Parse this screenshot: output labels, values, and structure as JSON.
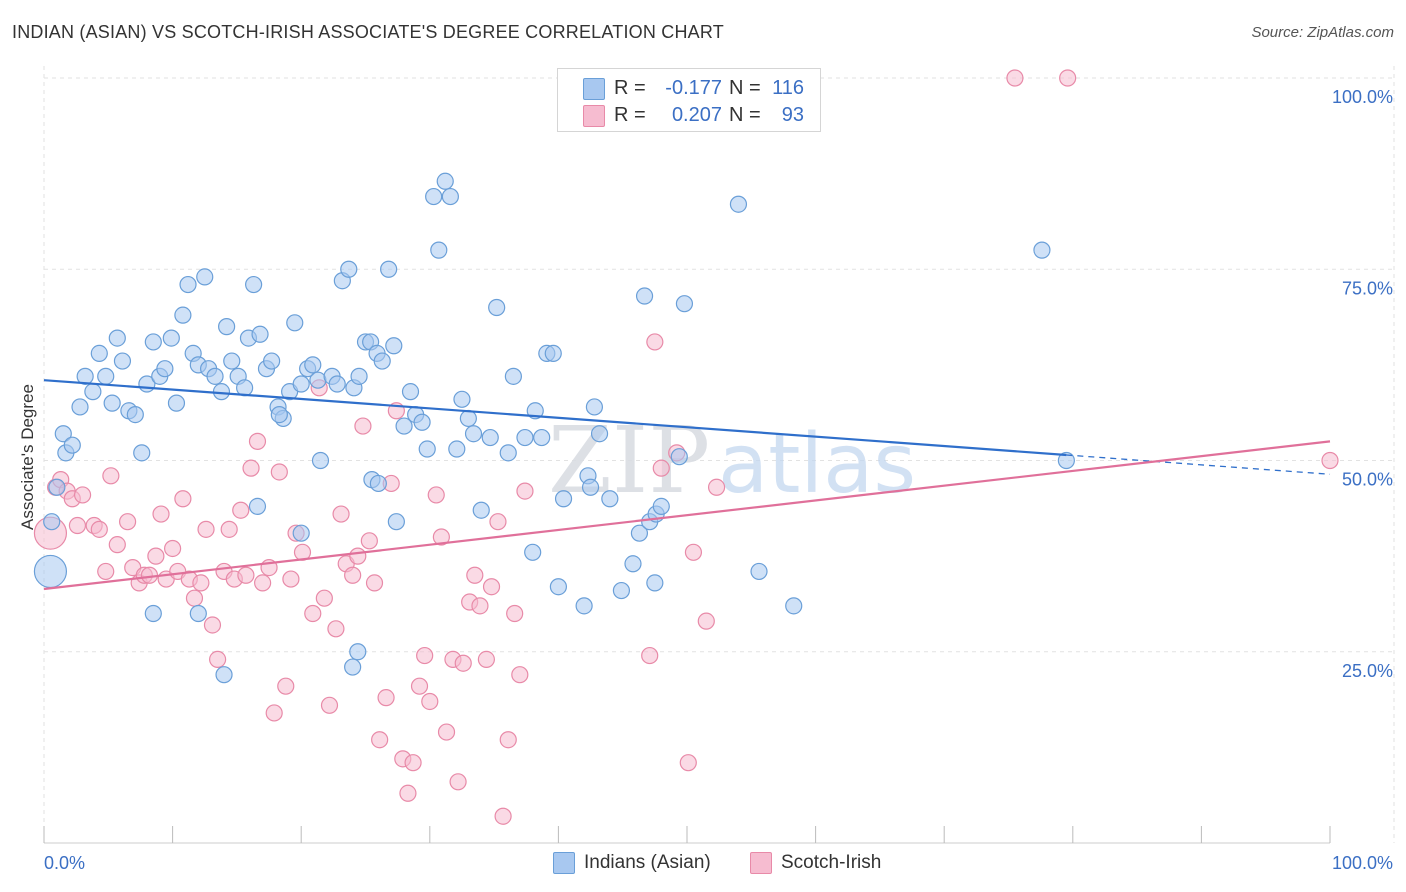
{
  "title": "INDIAN (ASIAN) VS SCOTCH-IRISH ASSOCIATE'S DEGREE CORRELATION CHART",
  "source": "Source: ZipAtlas.com",
  "watermark": {
    "zip": "ZIP",
    "atlas": "atlas"
  },
  "colors": {
    "blue_fill": "#a8c8f0",
    "blue_stroke": "#6a9fd8",
    "blue_line": "#2f6fcb",
    "pink_fill": "#f6bcd0",
    "pink_stroke": "#e88aa8",
    "pink_line": "#e0709a",
    "tick_text": "#3b6fc4",
    "grid": "#e2e2e2"
  },
  "stats": [
    {
      "r_label": "R =",
      "r_value": "-0.177",
      "n_label": "N =",
      "n_value": "116"
    },
    {
      "r_label": "R =",
      "r_value": "0.207",
      "n_label": "N =",
      "n_value": "93"
    }
  ],
  "legend": {
    "series1": "Indians (Asian)",
    "series2": "Scotch-Irish"
  },
  "chart_data": {
    "type": "scatter",
    "title": "INDIAN (ASIAN) VS SCOTCH-IRISH ASSOCIATE'S DEGREE CORRELATION CHART",
    "xlabel": "",
    "ylabel": "Associate's Degree",
    "xlim": [
      0,
      100
    ],
    "ylim": [
      0,
      100
    ],
    "x_tick_labels": [
      "0.0%",
      "100.0%"
    ],
    "y_tick_labels": [
      "25.0%",
      "50.0%",
      "75.0%",
      "100.0%"
    ],
    "y_ticks": [
      25,
      50,
      75,
      100
    ],
    "grid": true,
    "legend_position": "bottom",
    "series": [
      {
        "name": "Indians (Asian)",
        "trend": {
          "x0": 0,
          "y0": 60.5,
          "x1": 100,
          "y1": 48.2,
          "solid_until": 79.5
        },
        "points": [
          [
            0.5,
            35.5
          ],
          [
            0.6,
            42
          ],
          [
            1.0,
            46.5
          ],
          [
            1.5,
            53.5
          ],
          [
            1.7,
            51
          ],
          [
            2.2,
            52
          ],
          [
            2.8,
            57
          ],
          [
            3.2,
            61
          ],
          [
            3.8,
            59
          ],
          [
            4.3,
            64
          ],
          [
            4.8,
            61
          ],
          [
            5.3,
            57.5
          ],
          [
            5.7,
            66
          ],
          [
            6.1,
            63
          ],
          [
            6.6,
            56.5
          ],
          [
            7.1,
            56
          ],
          [
            7.6,
            51
          ],
          [
            8.0,
            60
          ],
          [
            8.5,
            65.5
          ],
          [
            9.0,
            61
          ],
          [
            9.4,
            62
          ],
          [
            9.9,
            66
          ],
          [
            10.3,
            57.5
          ],
          [
            10.8,
            69
          ],
          [
            11.2,
            73
          ],
          [
            11.6,
            64
          ],
          [
            12.0,
            62.5
          ],
          [
            12.5,
            74
          ],
          [
            12.8,
            62
          ],
          [
            13.3,
            61
          ],
          [
            13.8,
            59
          ],
          [
            14.2,
            67.5
          ],
          [
            14.6,
            63
          ],
          [
            15.1,
            61
          ],
          [
            15.6,
            59.5
          ],
          [
            15.9,
            66
          ],
          [
            16.3,
            73
          ],
          [
            16.8,
            66.5
          ],
          [
            17.3,
            62
          ],
          [
            17.7,
            63
          ],
          [
            18.2,
            57
          ],
          [
            18.6,
            55.5
          ],
          [
            19.1,
            59
          ],
          [
            19.5,
            68
          ],
          [
            20.0,
            60
          ],
          [
            20.5,
            62
          ],
          [
            20.9,
            62.5
          ],
          [
            21.3,
            60.5
          ],
          [
            22.4,
            61
          ],
          [
            22.8,
            60
          ],
          [
            23.2,
            73.5
          ],
          [
            23.7,
            75
          ],
          [
            24.1,
            59.5
          ],
          [
            24.5,
            61
          ],
          [
            25.0,
            65.5
          ],
          [
            25.4,
            65.5
          ],
          [
            25.9,
            64
          ],
          [
            26.3,
            63
          ],
          [
            26.8,
            75
          ],
          [
            27.2,
            65
          ],
          [
            28.0,
            54.5
          ],
          [
            28.5,
            59
          ],
          [
            28.9,
            56
          ],
          [
            29.4,
            55
          ],
          [
            29.8,
            51.5
          ],
          [
            30.3,
            84.5
          ],
          [
            30.7,
            77.5
          ],
          [
            31.2,
            86.5
          ],
          [
            31.6,
            84.5
          ],
          [
            32.1,
            51.5
          ],
          [
            32.5,
            58
          ],
          [
            33.0,
            55.5
          ],
          [
            33.4,
            53.5
          ],
          [
            34.7,
            53
          ],
          [
            35.2,
            70
          ],
          [
            36.1,
            51
          ],
          [
            36.5,
            61
          ],
          [
            37.4,
            53
          ],
          [
            38.2,
            56.5
          ],
          [
            38.7,
            53
          ],
          [
            39.1,
            64
          ],
          [
            39.6,
            64
          ],
          [
            40.4,
            45
          ],
          [
            42.3,
            48
          ],
          [
            42.8,
            57
          ],
          [
            43.2,
            53.5
          ],
          [
            45.8,
            36.5
          ],
          [
            46.3,
            40.5
          ],
          [
            46.7,
            71.5
          ],
          [
            47.1,
            42
          ],
          [
            47.6,
            43
          ],
          [
            48.0,
            44
          ],
          [
            49.4,
            50.5
          ],
          [
            49.8,
            70.5
          ],
          [
            54.0,
            83.5
          ],
          [
            55.6,
            35.5
          ],
          [
            58.3,
            31
          ],
          [
            77.6,
            77.5
          ],
          [
            79.5,
            50
          ],
          [
            8.5,
            30
          ],
          [
            12.0,
            30
          ],
          [
            14.0,
            22
          ],
          [
            24.0,
            23
          ],
          [
            25.5,
            47.5
          ],
          [
            27.4,
            42
          ],
          [
            16.6,
            44
          ],
          [
            18.3,
            56
          ],
          [
            24.4,
            25
          ],
          [
            40.0,
            33.5
          ],
          [
            42.5,
            46.5
          ],
          [
            44.0,
            45
          ],
          [
            47.5,
            34
          ],
          [
            26.0,
            47
          ],
          [
            20.0,
            40.5
          ],
          [
            34.0,
            43.5
          ],
          [
            38.0,
            38
          ],
          [
            42.0,
            31
          ],
          [
            44.9,
            33
          ],
          [
            21.5,
            50
          ]
        ]
      },
      {
        "name": "Scotch-Irish",
        "trend": {
          "x0": 0,
          "y0": 33.2,
          "x1": 100,
          "y1": 52.5,
          "solid_until": 100
        },
        "points": [
          [
            0.5,
            40.5
          ],
          [
            0.9,
            46.5
          ],
          [
            1.3,
            47.5
          ],
          [
            1.8,
            46
          ],
          [
            2.2,
            45
          ],
          [
            2.6,
            41.5
          ],
          [
            3.0,
            45.5
          ],
          [
            3.9,
            41.5
          ],
          [
            4.3,
            41
          ],
          [
            4.8,
            35.5
          ],
          [
            5.2,
            48
          ],
          [
            5.7,
            39
          ],
          [
            6.5,
            42
          ],
          [
            6.9,
            36
          ],
          [
            7.4,
            34
          ],
          [
            7.8,
            35
          ],
          [
            8.2,
            35
          ],
          [
            8.7,
            37.5
          ],
          [
            9.1,
            43
          ],
          [
            9.5,
            34.5
          ],
          [
            10.0,
            38.5
          ],
          [
            10.4,
            35.5
          ],
          [
            10.8,
            45
          ],
          [
            11.3,
            34.5
          ],
          [
            11.7,
            32
          ],
          [
            12.2,
            34
          ],
          [
            12.6,
            41
          ],
          [
            13.1,
            28.5
          ],
          [
            13.5,
            24
          ],
          [
            14.0,
            35.5
          ],
          [
            14.4,
            41
          ],
          [
            14.8,
            34.5
          ],
          [
            15.3,
            43.5
          ],
          [
            15.7,
            35
          ],
          [
            16.1,
            49
          ],
          [
            16.6,
            52.5
          ],
          [
            17.0,
            34
          ],
          [
            17.5,
            36
          ],
          [
            17.9,
            17
          ],
          [
            18.3,
            48.5
          ],
          [
            18.8,
            20.5
          ],
          [
            19.2,
            34.5
          ],
          [
            19.6,
            40.5
          ],
          [
            20.1,
            38
          ],
          [
            20.9,
            30
          ],
          [
            21.4,
            59.5
          ],
          [
            21.8,
            32
          ],
          [
            22.2,
            18
          ],
          [
            22.7,
            28
          ],
          [
            23.1,
            43
          ],
          [
            23.5,
            36.5
          ],
          [
            24.0,
            35
          ],
          [
            24.4,
            37.5
          ],
          [
            24.8,
            54.5
          ],
          [
            25.3,
            39.5
          ],
          [
            25.7,
            34
          ],
          [
            26.1,
            13.5
          ],
          [
            26.6,
            19
          ],
          [
            27.0,
            47
          ],
          [
            27.4,
            56.5
          ],
          [
            27.9,
            11
          ],
          [
            28.3,
            6.5
          ],
          [
            28.7,
            10.5
          ],
          [
            29.2,
            20.5
          ],
          [
            29.6,
            24.5
          ],
          [
            30.0,
            18.5
          ],
          [
            30.5,
            45.5
          ],
          [
            30.9,
            40
          ],
          [
            31.3,
            14.5
          ],
          [
            31.8,
            24
          ],
          [
            32.2,
            8
          ],
          [
            32.6,
            23.5
          ],
          [
            33.1,
            31.5
          ],
          [
            33.5,
            35
          ],
          [
            33.9,
            31
          ],
          [
            34.4,
            24
          ],
          [
            34.8,
            33.5
          ],
          [
            35.3,
            42
          ],
          [
            35.7,
            3.5
          ],
          [
            36.1,
            13.5
          ],
          [
            36.6,
            30
          ],
          [
            37.0,
            22
          ],
          [
            37.4,
            46
          ],
          [
            47.1,
            24.5
          ],
          [
            47.5,
            65.5
          ],
          [
            48.0,
            49
          ],
          [
            49.2,
            51
          ],
          [
            50.1,
            10.5
          ],
          [
            50.5,
            38
          ],
          [
            51.5,
            29
          ],
          [
            52.3,
            46.5
          ],
          [
            75.5,
            100
          ],
          [
            79.6,
            100
          ],
          [
            100,
            50
          ]
        ]
      }
    ]
  }
}
